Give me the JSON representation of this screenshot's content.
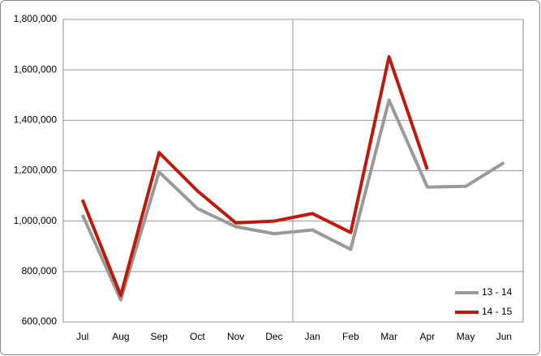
{
  "chart_data": {
    "type": "line",
    "categories": [
      "Jul",
      "Aug",
      "Sep",
      "Oct",
      "Nov",
      "Dec",
      "Jan",
      "Feb",
      "Mar",
      "Apr",
      "May",
      "Jun"
    ],
    "series": [
      {
        "name": "13 - 14",
        "color": "#999999",
        "values": [
          1025000,
          688000,
          1195000,
          1050000,
          978000,
          950000,
          965000,
          888000,
          1480000,
          1135000,
          1138000,
          1232000
        ]
      },
      {
        "name": "14 - 15",
        "color": "#c0180c",
        "values": [
          1085000,
          705000,
          1272000,
          1120000,
          993000,
          1000000,
          1030000,
          955000,
          1652000,
          1205000,
          null,
          null
        ]
      }
    ],
    "ylim": [
      600000,
      1800000
    ],
    "yticks": [
      {
        "value": 600000,
        "label": "600,000"
      },
      {
        "value": 800000,
        "label": "800,000"
      },
      {
        "value": 1000000,
        "label": "1,000,000"
      },
      {
        "value": 1200000,
        "label": "1,200,000"
      },
      {
        "value": 1400000,
        "label": "1,400,000"
      },
      {
        "value": 1600000,
        "label": "1,600,000"
      },
      {
        "value": 1800000,
        "label": "1,800,000"
      }
    ],
    "grid": true,
    "legend": "lower right"
  }
}
